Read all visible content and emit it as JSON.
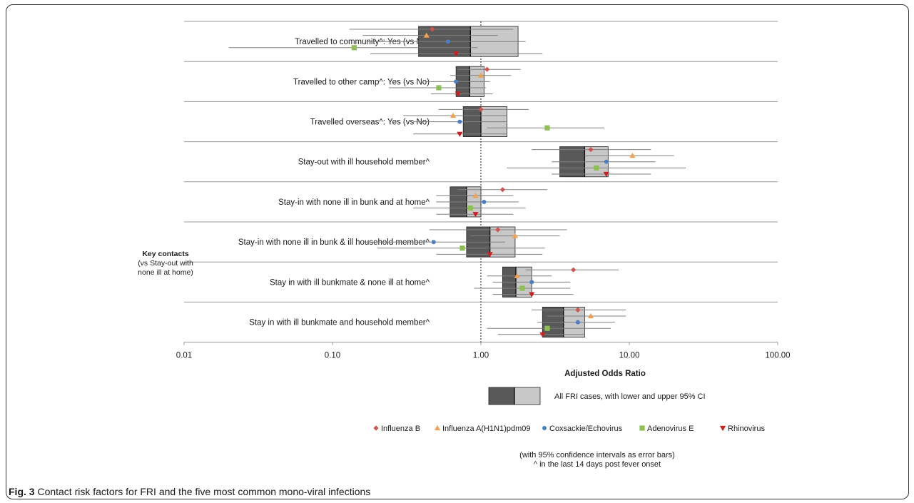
{
  "caption": {
    "label": "Fig. 3",
    "text": " Contact risk factors for FRI and the five most common mono-viral infections"
  },
  "side_label": {
    "title": "Key contacts",
    "lines": [
      "(vs Stay-out with",
      "none ill at home)"
    ]
  },
  "colors": {
    "box_dark": "#595959",
    "box_light": "#c8c8c8",
    "whisker": "#7f7f7f",
    "Influenza B": "#d0534f",
    "Influenza A(H1N1)pdm09": "#f0a050",
    "Coxsackie/Echovirus": "#4a7fc8",
    "Adenovirus E": "#8cc152",
    "Rhinovirus": "#cc1f1f"
  },
  "notes": [
    "(with 95% confidence intervals as error bars)",
    "^ in the last 14 days post fever onset"
  ],
  "chart_data": {
    "type": "forest",
    "xlabel": "Adjusted Odds Ratio",
    "xscale": "log",
    "xlim": [
      0.01,
      100
    ],
    "x_ticks": [
      0.01,
      0.1,
      1,
      10,
      100
    ],
    "x_tick_labels": [
      "0.01",
      "0.10",
      "1.00",
      "10.00",
      "100.00"
    ],
    "reference_line": 1,
    "box_legend": "All FRI cases,  with lower and upper 95% CI",
    "series_names": [
      "Influenza B",
      "Influenza A(H1N1)pdm09",
      "Coxsackie/Echovirus",
      "Adenovirus E",
      "Rhinovirus"
    ],
    "markers": {
      "Influenza B": "diamond",
      "Influenza A(H1N1)pdm09": "triangle-up",
      "Coxsackie/Echovirus": "circle",
      "Adenovirus E": "square",
      "Rhinovirus": "triangle-down"
    },
    "rows": [
      {
        "label": "Travelled to community^: Yes (vs No)",
        "all_fri": {
          "or": 0.85,
          "lower": 0.38,
          "upper": 1.78
        },
        "series": [
          {
            "or": 0.47,
            "lower": 0.13,
            "upper": 1.65
          },
          {
            "or": 0.43,
            "lower": 0.16,
            "upper": 1.3
          },
          {
            "or": 0.6,
            "lower": 0.17,
            "upper": 2.0
          },
          {
            "or": 0.14,
            "lower": 0.02,
            "upper": 0.95
          },
          {
            "or": 0.68,
            "lower": 0.18,
            "upper": 2.6
          }
        ]
      },
      {
        "label": "Travelled to other camp^: Yes (vs No)",
        "all_fri": {
          "or": 0.84,
          "lower": 0.68,
          "upper": 1.05
        },
        "series": [
          {
            "or": 1.1,
            "lower": 0.7,
            "upper": 1.85
          },
          {
            "or": 1.0,
            "lower": 0.62,
            "upper": 1.6
          },
          {
            "or": 0.68,
            "lower": 0.42,
            "upper": 1.15
          },
          {
            "or": 0.52,
            "lower": 0.24,
            "upper": 1.08
          },
          {
            "or": 0.7,
            "lower": 0.46,
            "upper": 1.2
          }
        ]
      },
      {
        "label": "Travelled overseas^: Yes (vs No)",
        "all_fri": {
          "or": 1.0,
          "lower": 0.76,
          "upper": 1.5
        },
        "series": [
          {
            "or": 1.0,
            "lower": 0.52,
            "upper": 2.1
          },
          {
            "or": 0.65,
            "lower": 0.3,
            "upper": 1.5
          },
          {
            "or": 0.72,
            "lower": 0.35,
            "upper": 1.5
          },
          {
            "or": 2.8,
            "lower": 1.1,
            "upper": 6.8
          },
          {
            "or": 0.72,
            "lower": 0.35,
            "upper": 1.5
          }
        ]
      },
      {
        "label": "Stay-out with ill household member^",
        "all_fri": {
          "or": 5.0,
          "lower": 3.4,
          "upper": 7.2
        },
        "series": [
          {
            "or": 5.5,
            "lower": 2.2,
            "upper": 14.0
          },
          {
            "or": 10.5,
            "lower": 5.0,
            "upper": 20.0
          },
          {
            "or": 7.0,
            "lower": 3.0,
            "upper": 15.0
          },
          {
            "or": 6.0,
            "lower": 1.5,
            "upper": 24.0
          },
          {
            "or": 7.0,
            "lower": 3.0,
            "upper": 14.0
          }
        ]
      },
      {
        "label": "Stay-in with none ill in bunk and at home^",
        "all_fri": {
          "or": 0.8,
          "lower": 0.62,
          "upper": 1.0
        },
        "series": [
          {
            "or": 1.4,
            "lower": 0.7,
            "upper": 2.8
          },
          {
            "or": 0.92,
            "lower": 0.5,
            "upper": 1.65
          },
          {
            "or": 1.05,
            "lower": 0.5,
            "upper": 1.8
          },
          {
            "or": 0.85,
            "lower": 0.35,
            "upper": 2.0
          },
          {
            "or": 0.92,
            "lower": 0.5,
            "upper": 1.65
          }
        ]
      },
      {
        "label": "Stay-in with none ill in bunk & ill household member^",
        "all_fri": {
          "or": 1.15,
          "lower": 0.8,
          "upper": 1.7
        },
        "series": [
          {
            "or": 1.3,
            "lower": 0.45,
            "upper": 3.8
          },
          {
            "or": 1.7,
            "lower": 0.85,
            "upper": 3.4
          },
          {
            "or": 0.48,
            "lower": 0.16,
            "upper": 1.45
          },
          {
            "or": 0.75,
            "lower": 0.2,
            "upper": 2.7
          },
          {
            "or": 1.15,
            "lower": 0.5,
            "upper": 2.6
          }
        ]
      },
      {
        "label": "Stay in with ill bunkmate & none ill at home^",
        "all_fri": {
          "or": 1.72,
          "lower": 1.4,
          "upper": 2.2
        },
        "series": [
          {
            "or": 4.2,
            "lower": 2.0,
            "upper": 8.5
          },
          {
            "or": 1.75,
            "lower": 1.1,
            "upper": 3.0
          },
          {
            "or": 2.2,
            "lower": 1.2,
            "upper": 4.0
          },
          {
            "or": 1.9,
            "lower": 0.9,
            "upper": 4.0
          },
          {
            "or": 2.2,
            "lower": 1.2,
            "upper": 4.2
          }
        ]
      },
      {
        "label": "Stay in with ill bunkmate and household member^",
        "all_fri": {
          "or": 3.6,
          "lower": 2.6,
          "upper": 5.0
        },
        "series": [
          {
            "or": 4.5,
            "lower": 2.2,
            "upper": 9.5
          },
          {
            "or": 5.5,
            "lower": 2.8,
            "upper": 9.5
          },
          {
            "or": 4.5,
            "lower": 2.4,
            "upper": 8.0
          },
          {
            "or": 2.8,
            "lower": 1.1,
            "upper": 7.5
          },
          {
            "or": 2.6,
            "lower": 1.3,
            "upper": 5.0
          }
        ]
      }
    ]
  }
}
